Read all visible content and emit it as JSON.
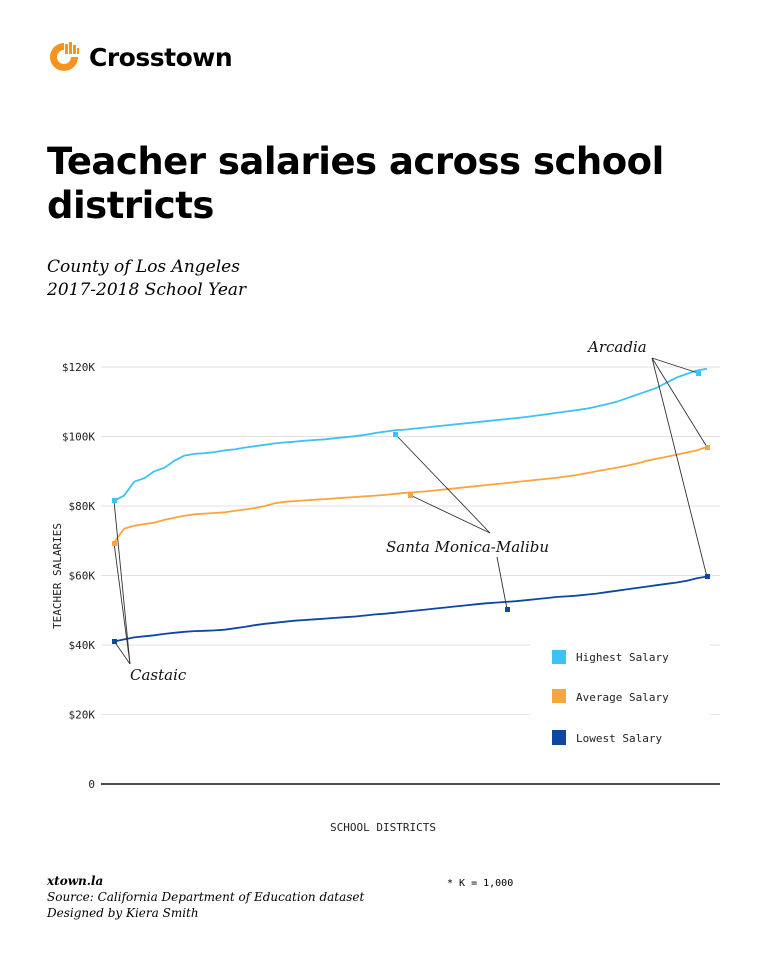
{
  "brand": {
    "name": "Crosstown",
    "logo_color": "#F7941D"
  },
  "title": "Teacher salaries across school districts",
  "subtitle": {
    "line1": "County of Los Angeles",
    "line2": "2017-2018 School Year"
  },
  "chart_data": {
    "type": "line",
    "title": "Teacher salaries across school districts",
    "xlabel": "SCHOOL DISTRICTS",
    "ylabel": "TEACHER SALARIES",
    "ylim": [
      0,
      120000
    ],
    "yticks": [
      "0",
      "$20K",
      "$40K",
      "$60K",
      "$80K",
      "$100K",
      "$120K"
    ],
    "grid": true,
    "legend_position": "right-lower",
    "x": "districts sorted ascending (index 0-60)",
    "series": [
      {
        "name": "Highest Salary",
        "color": "#3EC1F3",
        "values": [
          81.5,
          83,
          87,
          88,
          90,
          91,
          93,
          94.5,
          95,
          95.2,
          95.5,
          96,
          96.3,
          96.8,
          97.2,
          97.6,
          98,
          98.3,
          98.5,
          98.8,
          99,
          99.2,
          99.5,
          99.8,
          100.1,
          100.5,
          101,
          101.4,
          101.8,
          102,
          102.3,
          102.6,
          102.9,
          103.2,
          103.5,
          103.8,
          104.1,
          104.4,
          104.7,
          105,
          105.3,
          105.6,
          106,
          106.4,
          106.8,
          107.2,
          107.6,
          108,
          108.6,
          109.3,
          110,
          111,
          112,
          113,
          114,
          115.5,
          117,
          118,
          119,
          119.5
        ]
      },
      {
        "name": "Average Salary",
        "color": "#F9A53D",
        "values": [
          69.5,
          73.5,
          74.3,
          74.8,
          75.2,
          76,
          76.6,
          77.2,
          77.6,
          77.8,
          78,
          78.2,
          78.6,
          79,
          79.4,
          80,
          80.8,
          81.2,
          81.4,
          81.6,
          81.8,
          82,
          82.2,
          82.4,
          82.6,
          82.8,
          83,
          83.2,
          83.5,
          83.8,
          84,
          84.2,
          84.5,
          84.8,
          85.1,
          85.4,
          85.7,
          86,
          86.3,
          86.6,
          86.9,
          87.2,
          87.5,
          87.8,
          88.1,
          88.5,
          88.9,
          89.4,
          90,
          90.5,
          91,
          91.6,
          92.2,
          93,
          93.6,
          94.2,
          94.8,
          95.4,
          96,
          97
        ]
      },
      {
        "name": "Lowest Salary",
        "color": "#0D47A1",
        "values": [
          41,
          41.6,
          42.2,
          42.5,
          42.8,
          43.2,
          43.5,
          43.8,
          44,
          44.1,
          44.2,
          44.4,
          44.8,
          45.2,
          45.7,
          46.1,
          46.4,
          46.7,
          47,
          47.2,
          47.4,
          47.6,
          47.8,
          48,
          48.2,
          48.5,
          48.8,
          49,
          49.3,
          49.6,
          49.9,
          50.2,
          50.5,
          50.8,
          51.1,
          51.4,
          51.7,
          52,
          52.2,
          52.4,
          52.6,
          52.9,
          53.2,
          53.5,
          53.8,
          54,
          54.2,
          54.5,
          54.8,
          55.2,
          55.6,
          56,
          56.4,
          56.8,
          57.2,
          57.6,
          58,
          58.5,
          59.2,
          59.7
        ]
      }
    ],
    "annotations": [
      {
        "label": "Arcadia",
        "points": [
          "Highest Salary: ~118K",
          "Average Salary: ~97K",
          "Lowest Salary: ~60K"
        ]
      },
      {
        "label": "Santa Monica-Malibu",
        "points": [
          "Highest Salary: ~100.5K",
          "Average Salary: ~83K",
          "Lowest Salary: ~50.5K"
        ]
      },
      {
        "label": "Castaic",
        "points": [
          "Highest Salary: ~81.5K",
          "Average Salary: ~69.5K",
          "Lowest Salary: ~41K"
        ]
      }
    ]
  },
  "axis": {
    "ylabel": "TEACHER SALARIES",
    "xlabel": "SCHOOL DISTRICTS",
    "yticks": [
      "0",
      "$20K",
      "$40K",
      "$60K",
      "$80K",
      "$100K",
      "$120K"
    ]
  },
  "legend": [
    {
      "label": "Highest Salary",
      "color": "#3EC1F3"
    },
    {
      "label": "Average Salary",
      "color": "#F9A53D"
    },
    {
      "label": "Lowest Salary",
      "color": "#0D47A1"
    }
  ],
  "annotations": {
    "arcadia": "Arcadia",
    "smm": "Santa Monica-Malibu",
    "castaic": "Castaic"
  },
  "footer": {
    "site": "xtown.la",
    "source": "Source: California Department of Education dataset",
    "designer": "Designed by Kiera Smith",
    "note": "* K = 1,000"
  }
}
